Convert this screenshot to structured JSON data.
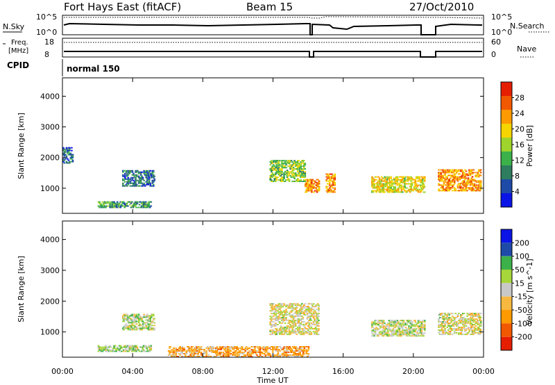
{
  "header": {
    "station": "Fort Hays East (fitACF)",
    "beam": "Beam 15",
    "date": "27/Oct/2010"
  },
  "strip": {
    "left_nsky": "N.Sky",
    "left_tick_hi": "10^5",
    "left_tick_lo": "10^0",
    "right_tick_hi": "10^5",
    "right_tick_lo": "10^0",
    "right_label": "N.Search",
    "freq_label_1": "Freq.",
    "freq_label_2": "[MHz]",
    "freq_tick_hi": "18",
    "freq_tick_lo": "8",
    "nave_tick_hi": "60",
    "nave_tick_lo": "0",
    "nave_label": "Nave",
    "cpid_label": "CPID",
    "cpid_value": "normal 150"
  },
  "colors": {
    "power": [
      "#0a14e6",
      "#1e4aa8",
      "#2e7d5e",
      "#3cb14a",
      "#9ed42c",
      "#f5d400",
      "#ff9a00",
      "#f25800",
      "#e61e00"
    ],
    "velocity": [
      "#e61e00",
      "#f25800",
      "#ff9a00",
      "#f7b840",
      "#c8c8c8",
      "#a6d63a",
      "#3cb14a",
      "#1e4aa8",
      "#0a14e6"
    ]
  },
  "chart_data": [
    {
      "type": "heatmap",
      "name": "power",
      "xlabel": "Time UT",
      "ylabel": "Slant Range [km]",
      "xlim": [
        0,
        24
      ],
      "ylim": [
        180,
        4600
      ],
      "x_ticks": [
        "00:00",
        "04:00",
        "08:00",
        "12:00",
        "16:00",
        "20:00",
        "00:00"
      ],
      "y_ticks": [
        1000,
        2000,
        3000,
        4000
      ],
      "colorbar_label": "Power [dB]",
      "colorbar_ticks": [
        "4",
        "8",
        "12",
        "16",
        "20",
        "24",
        "28"
      ],
      "clim": [
        0,
        30
      ],
      "regions": [
        {
          "t0": 3.4,
          "t1": 5.2,
          "r0": 1050,
          "r1": 1550,
          "v": 7
        },
        {
          "t0": 2.0,
          "t1": 5.0,
          "r0": 350,
          "r1": 550,
          "v": 10
        },
        {
          "t0": 0.0,
          "t1": 0.6,
          "r0": 1800,
          "r1": 2300,
          "v": 6
        },
        {
          "t0": 11.8,
          "t1": 13.8,
          "r0": 1200,
          "r1": 1900,
          "v": 14
        },
        {
          "t0": 13.8,
          "t1": 14.6,
          "r0": 850,
          "r1": 1300,
          "v": 22
        },
        {
          "t0": 15.0,
          "t1": 15.5,
          "r0": 850,
          "r1": 1450,
          "v": 22
        },
        {
          "t0": 17.6,
          "t1": 20.6,
          "r0": 850,
          "r1": 1350,
          "v": 18
        },
        {
          "t0": 21.4,
          "t1": 23.8,
          "r0": 900,
          "r1": 1600,
          "v": 22
        }
      ]
    },
    {
      "type": "heatmap",
      "name": "velocity",
      "xlabel": "Time UT",
      "ylabel": "Slant Range [km]",
      "xlim": [
        0,
        24
      ],
      "ylim": [
        180,
        4600
      ],
      "x_ticks": [
        "00:00",
        "04:00",
        "08:00",
        "12:00",
        "16:00",
        "20:00",
        "00:00"
      ],
      "y_ticks": [
        1000,
        2000,
        3000,
        4000
      ],
      "colorbar_label": "Velocity [m s^-1]",
      "colorbar_ticks": [
        "200",
        "100",
        "50",
        "15",
        "-15",
        "-50",
        "-100",
        "-200"
      ],
      "clim": [
        -250,
        250
      ],
      "regions": [
        {
          "t0": 3.4,
          "t1": 5.2,
          "r0": 1050,
          "r1": 1550,
          "v": 30
        },
        {
          "t0": 2.0,
          "t1": 5.0,
          "r0": 350,
          "r1": 550,
          "v": 50
        },
        {
          "t0": 11.8,
          "t1": 14.6,
          "r0": 900,
          "r1": 1900,
          "v": 0
        },
        {
          "t0": 17.6,
          "t1": 20.6,
          "r0": 850,
          "r1": 1350,
          "v": 20
        },
        {
          "t0": 21.4,
          "t1": 23.8,
          "r0": 900,
          "r1": 1600,
          "v": 0
        },
        {
          "t0": 6.0,
          "t1": 14.0,
          "r0": 180,
          "r1": 500,
          "v": -80
        }
      ]
    }
  ]
}
